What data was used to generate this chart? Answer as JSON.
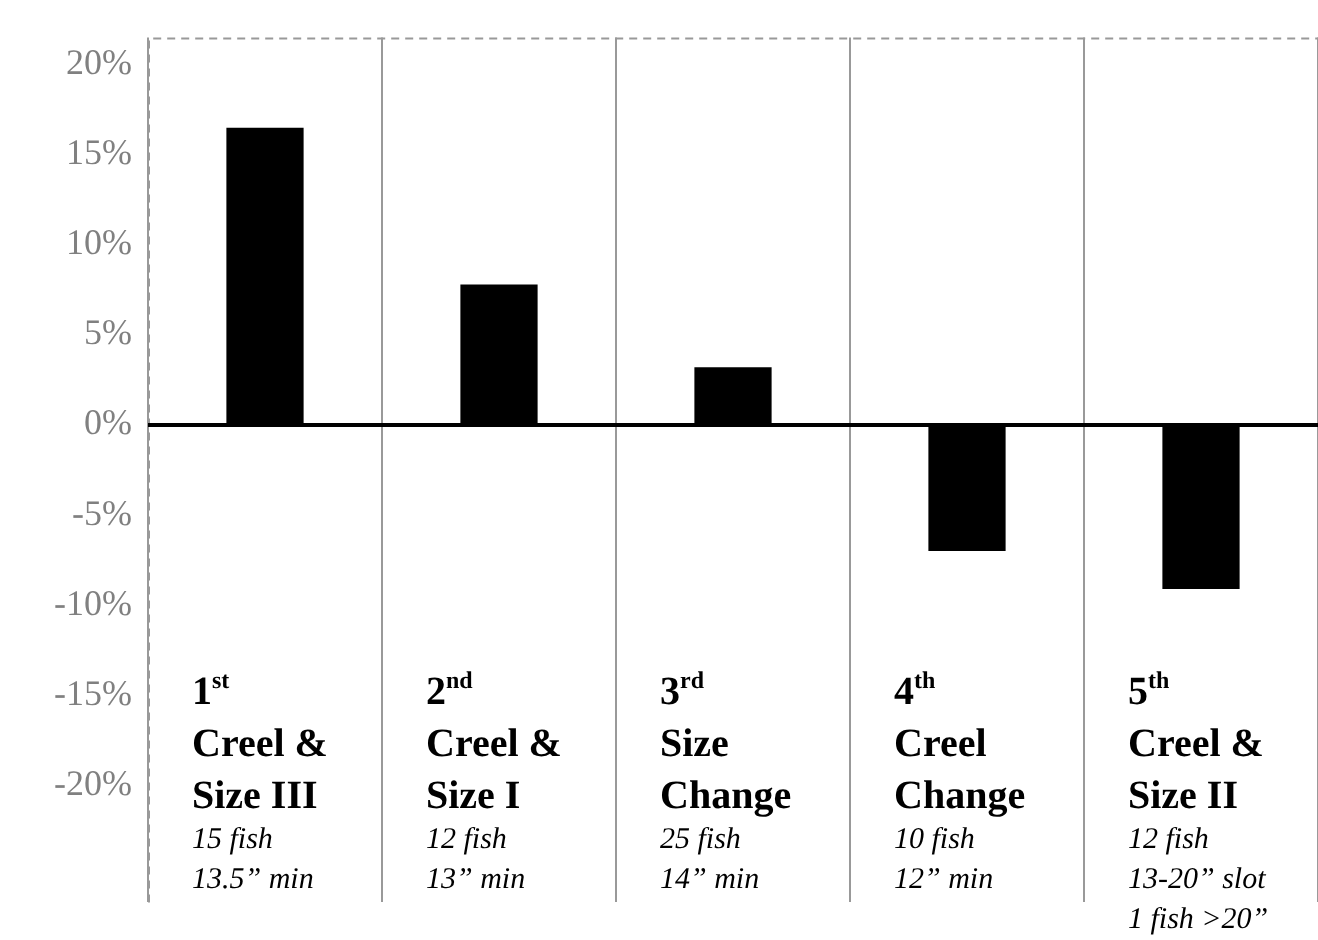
{
  "chart_data": {
    "type": "bar",
    "categories": [
      "1$^{st}$\nCreel &\nSize III\n15 fish\n13.5” min",
      "2$^{nd}$\nCreel &\nSize I\n12 fish\n13” min",
      "3$^{rd}$\nSize\nChange\n25 fish\n14” min",
      "4$^{th}$\nCreel\nChange\n10 fish\n12” min",
      "5$^{th}$\nCreel &\nSize II\n12 fish\n13-20” slot\n1 fish >20”"
    ],
    "values": [
      16.5,
      7.8,
      3.2,
      -7.0,
      -9.1
    ],
    "color": "#000000",
    "ylim": [
      -26.5,
      21.5
    ],
    "yticks": [
      {
        "value": -20,
        "label": "-20%"
      },
      {
        "value": -15,
        "label": "-15%"
      },
      {
        "value": -10,
        "label": "-10%"
      },
      {
        "value": -5,
        "label": "-5%"
      },
      {
        "value": 0,
        "label": "0%"
      },
      {
        "value": 5,
        "label": "5%"
      },
      {
        "value": 10,
        "label": "10%"
      },
      {
        "value": 15,
        "label": "15%"
      },
      {
        "value": 20,
        "label": "20%"
      }
    ],
    "grid": "x",
    "legend": false
  }
}
